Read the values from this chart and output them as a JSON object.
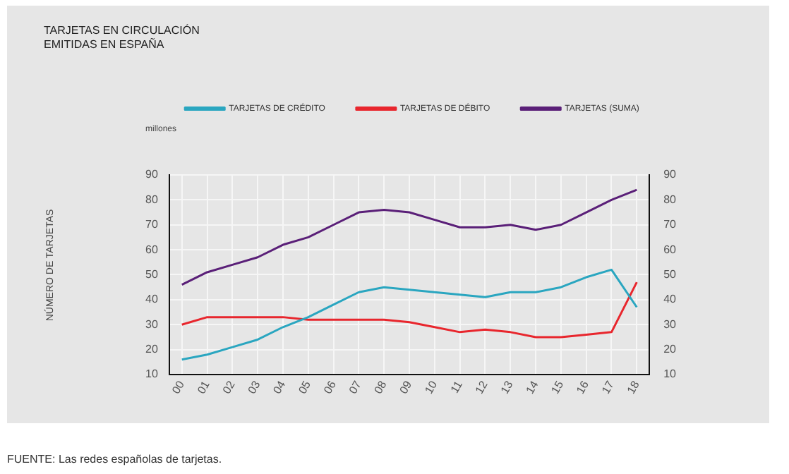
{
  "chart_data": {
    "type": "line",
    "title": "TARJETAS EN CIRCULACIÓN\nEMITIDAS EN ESPAÑA",
    "annotations": [
      "millones",
      "NÚMERO DE TARJETAS",
      "FUENTE: Las redes españolas de tarjetas."
    ],
    "categories": [
      "00",
      "01",
      "02",
      "03",
      "04",
      "05",
      "06",
      "07",
      "08",
      "09",
      "10",
      "11",
      "12",
      "13",
      "14",
      "15",
      "16",
      "17",
      "18"
    ],
    "series": [
      {
        "name": "TARJETAS DE CRÉDITO",
        "color": "#2aa6c0",
        "values": [
          16,
          18,
          21,
          24,
          29,
          33,
          38,
          43,
          45,
          44,
          43,
          42,
          41,
          43,
          43,
          45,
          49,
          52,
          37
        ]
      },
      {
        "name": "TARJETAS DE DÉBITO",
        "color": "#e8262d",
        "values": [
          30,
          33,
          33,
          33,
          33,
          32,
          32,
          32,
          32,
          31,
          29,
          27,
          28,
          27,
          25,
          25,
          26,
          27,
          47
        ]
      },
      {
        "name": "TARJETAS (SUMA)",
        "color": "#5a1f78",
        "values": [
          46,
          51,
          54,
          57,
          62,
          65,
          70,
          75,
          76,
          75,
          72,
          69,
          69,
          70,
          68,
          70,
          75,
          80,
          84
        ]
      }
    ],
    "ylim": [
      10,
      90
    ],
    "yticks": [
      10,
      20,
      30,
      40,
      50,
      60,
      70,
      80,
      90
    ],
    "y2lim": [
      10,
      90
    ],
    "y2ticks": [
      10,
      20,
      30,
      40,
      50,
      60,
      70,
      80,
      90
    ],
    "grid": true,
    "legend": "top",
    "marker": "none",
    "line_style": "solid"
  }
}
